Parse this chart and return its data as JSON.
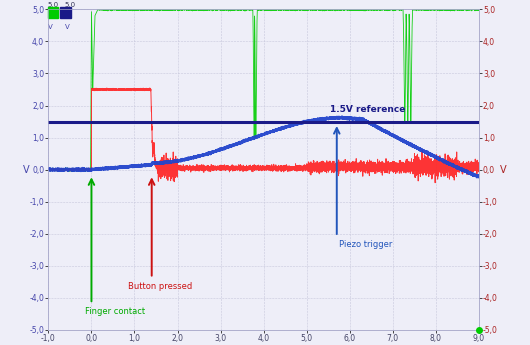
{
  "xlim": [
    -1.0,
    9.0
  ],
  "ylim": [
    -5.0,
    5.0
  ],
  "xticks": [
    -1.0,
    0.0,
    1.0,
    2.0,
    3.0,
    4.0,
    5.0,
    6.0,
    7.0,
    8.0,
    9.0
  ],
  "yticks": [
    -5.0,
    -4.0,
    -3.0,
    -2.0,
    -1.0,
    0.0,
    1.0,
    2.0,
    3.0,
    4.0,
    5.0
  ],
  "xlabels": [
    "-1,0",
    "0,0",
    "1,0",
    "2,0",
    "3,0",
    "4,0",
    "5,0",
    "6,0",
    "7,0",
    "8,0",
    "9,0"
  ],
  "ylabels": [
    "-5,0",
    "-4,0",
    "-3,0",
    "-2,0",
    "-1,0",
    "0,0",
    "1,0",
    "2,0",
    "3,0",
    "4,0",
    "5,0"
  ],
  "ylabel": "V",
  "reference_line_y": 1.5,
  "reference_label": "1.5V reference",
  "finger_contact_x": 0.0,
  "finger_contact_label": "Finger contact",
  "button_pressed_x": 1.4,
  "button_pressed_label": "Button pressed",
  "piezo_trigger_x": 5.7,
  "piezo_trigger_label": "Piezo trigger",
  "bg_color": "#eeeef8",
  "grid_color": "#c8c8dc",
  "green_color": "#00cc00",
  "red_color": "#ff2020",
  "blue_ref_color": "#1a1a88",
  "blue_signal_color": "#2244cc",
  "annotation_green_color": "#00aa00",
  "annotation_red_color": "#cc1111",
  "annotation_blue_color": "#2255bb"
}
